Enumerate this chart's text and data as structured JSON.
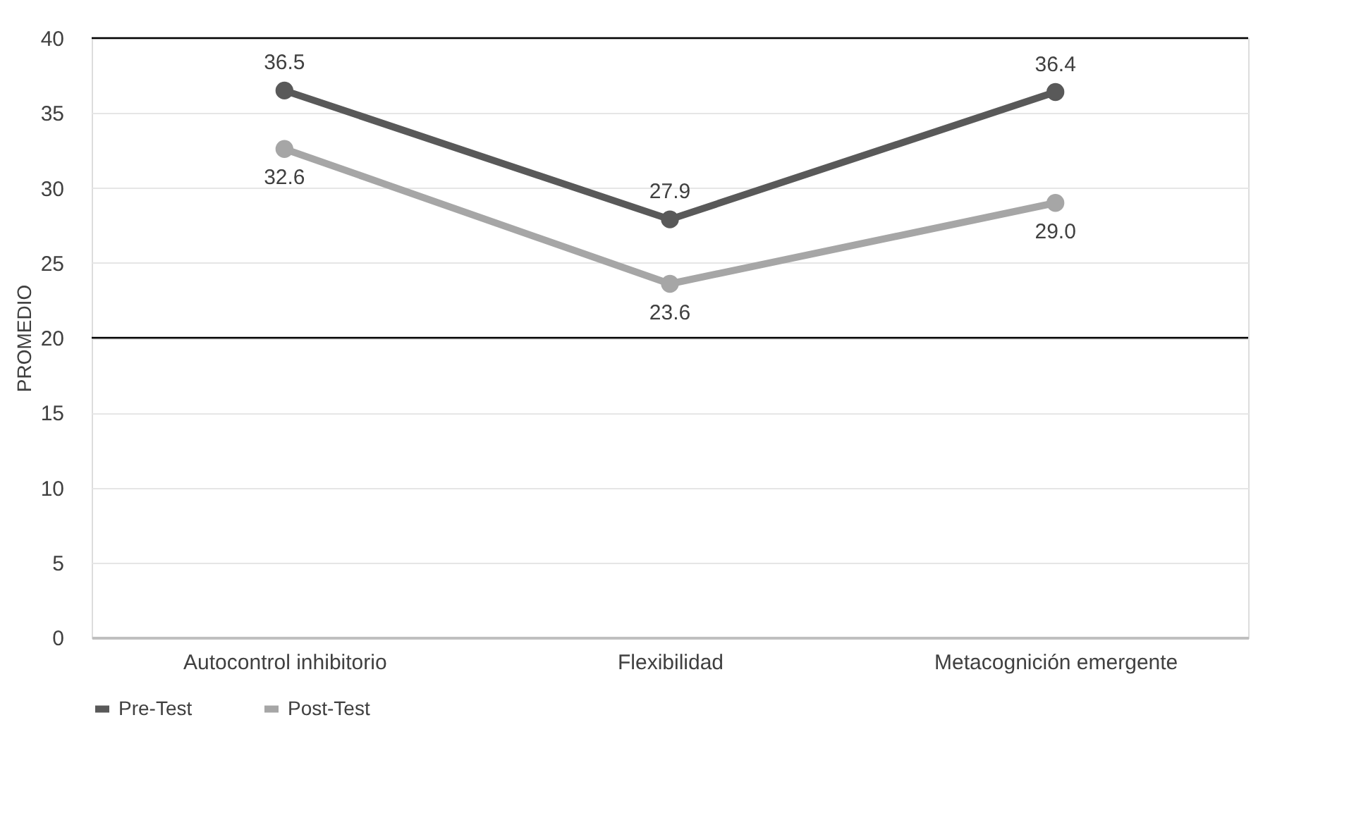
{
  "chart_data": {
    "type": "line",
    "ylabel": "PROMEDIO",
    "categories": [
      "Autocontrol inhibitorio",
      "Flexibilidad",
      "Metacognición emergente"
    ],
    "series": [
      {
        "name": "Pre-Test",
        "color": "#595959",
        "values": [
          36.5,
          27.9,
          36.4
        ],
        "value_labels": [
          "36.5",
          "27.9",
          "36.4"
        ]
      },
      {
        "name": "Post-Test",
        "color": "#a6a6a6",
        "values": [
          32.6,
          23.6,
          29.0
        ],
        "value_labels": [
          "32.6",
          "23.6",
          "29.0"
        ]
      }
    ],
    "ylim": [
      0,
      40
    ],
    "yticks": [
      0,
      5,
      10,
      15,
      20,
      25,
      30,
      35,
      40
    ],
    "ref_lines": [
      {
        "axis": "y",
        "value": 40,
        "color": "#000000"
      },
      {
        "axis": "y",
        "value": 20,
        "color": "#000000"
      }
    ],
    "grid": "y",
    "legend": "bottom",
    "marker": "circle",
    "line_style": "solid"
  }
}
